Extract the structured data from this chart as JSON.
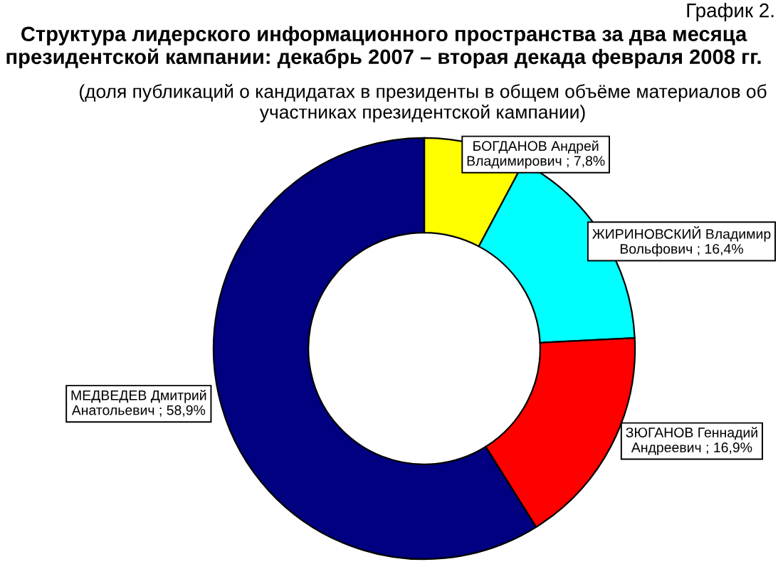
{
  "chart_data": {
    "type": "donut",
    "title": "Структура лидерского информационного пространства за два месяца президентской кампании: декабрь 2007 – вторая декада февраля 2008 гг.",
    "subtitle": "(доля публикаций о кандидатах в президенты в общем объёме материалов об участниках президентской кампании)",
    "annotations": [
      "График 2."
    ],
    "categories": [
      "БОГДАНОВ Андрей Владимирович",
      "ЖИРИНОВСКИЙ Владимир Вольфович",
      "ЗЮГАНОВ Геннадий Андреевич",
      "МЕДВЕДЕВ Дмитрий Анатольевич"
    ],
    "values": [
      7.8,
      16.4,
      16.9,
      58.9
    ],
    "value_labels": [
      "; 7,8%",
      "; 16,4%",
      "; 16,9%",
      "; 58,9%"
    ],
    "colors": [
      "#ffff00",
      "#00ffff",
      "#ff0000",
      "#000080"
    ],
    "legend": false
  }
}
